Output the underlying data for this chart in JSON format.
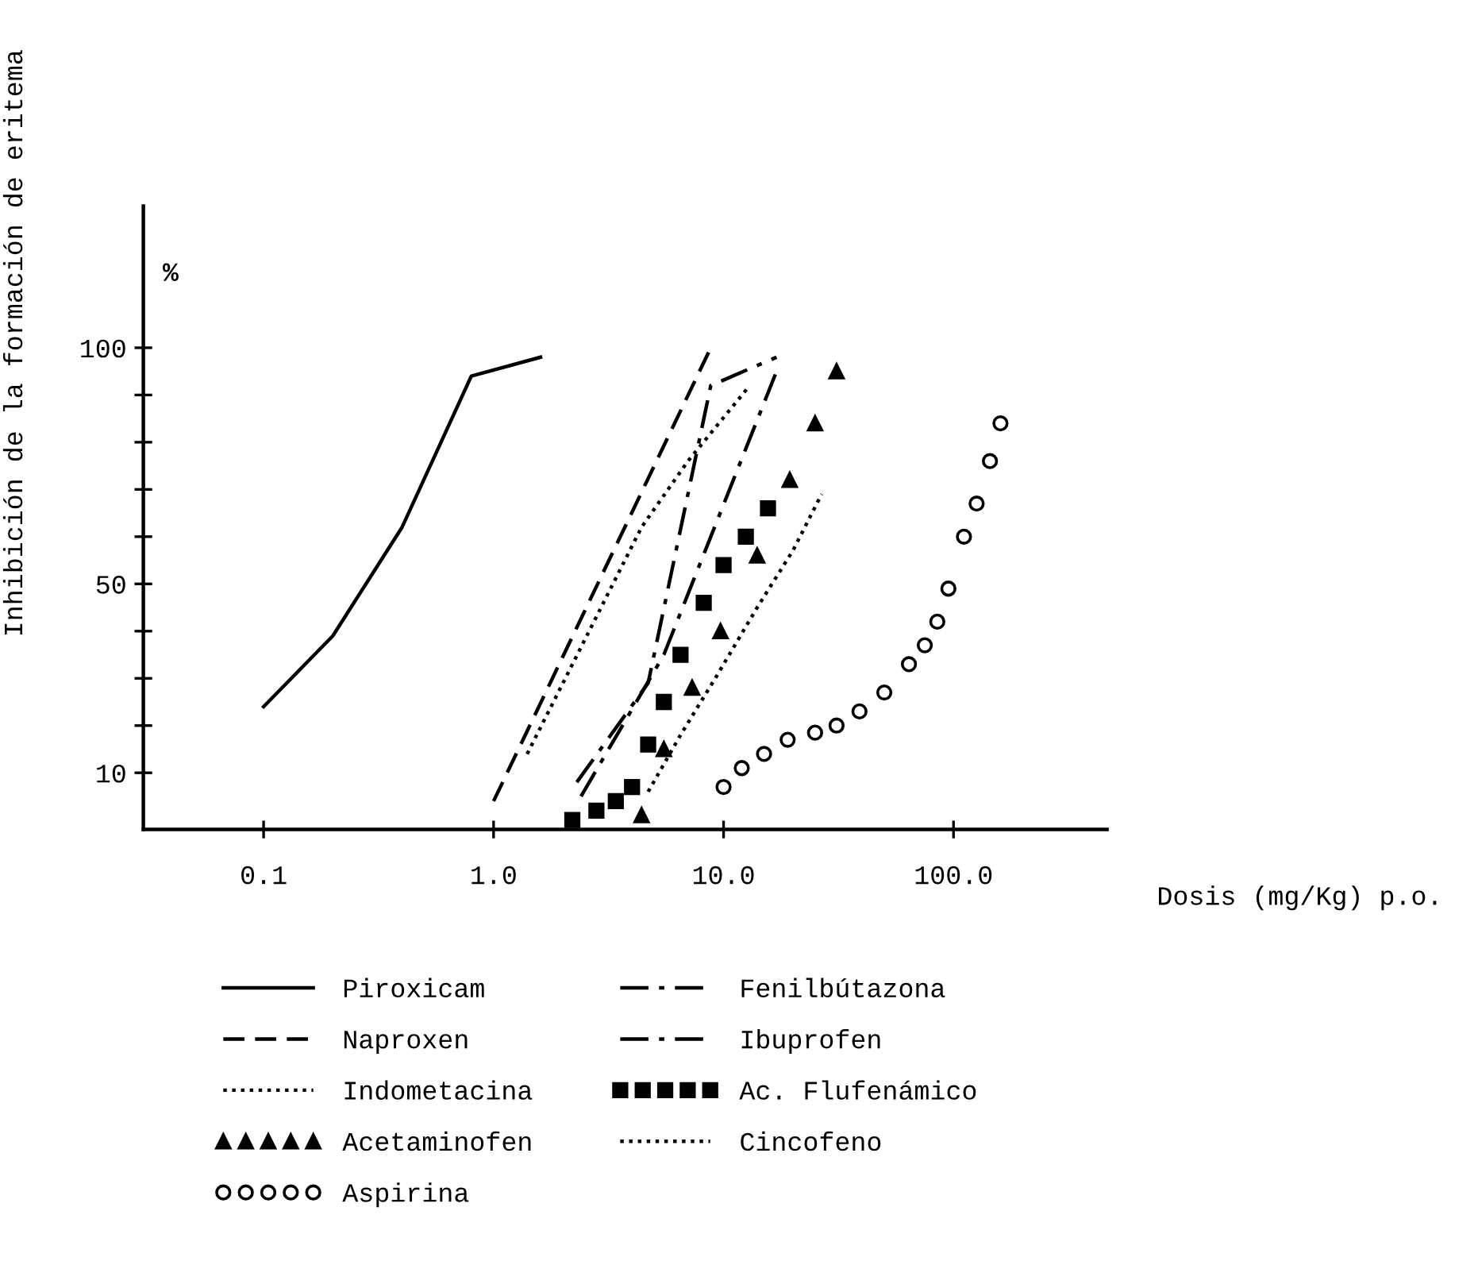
{
  "chart_data": {
    "type": "line",
    "xlabel": "Dosis (mg/Kg) p.o.",
    "ylabel": "Inhibición de la formación de eritema",
    "annotations": [
      "%"
    ],
    "log": "x",
    "xlim": [
      0.03,
      465
    ],
    "xticks": [
      0.1,
      {
        "value": 1,
        "label": "1.0"
      },
      {
        "value": 10,
        "label": "10.0"
      },
      {
        "value": 100,
        "label": "100.0"
      }
    ],
    "ylim": [
      -2,
      130
    ],
    "yticks": [
      10,
      {
        "value": 20,
        "label": null
      },
      {
        "value": 30,
        "label": null
      },
      {
        "value": 40,
        "label": null
      },
      50,
      {
        "value": 60,
        "label": null
      },
      {
        "value": 70,
        "label": null
      },
      {
        "value": 80,
        "label": null
      },
      {
        "value": 90,
        "label": null
      },
      100
    ],
    "grid": false,
    "legend": "bottom",
    "series": [
      {
        "name": "Piroxicam",
        "color": "#000000",
        "line_style": "solid",
        "marker": "none",
        "x": [
          0.1,
          0.2,
          0.4,
          0.8,
          1.6
        ],
        "values": [
          24,
          39,
          62,
          94,
          98
        ]
      },
      {
        "name": "Naproxen",
        "color": "#000000",
        "line_style": "dashed",
        "marker": "none",
        "x": [
          1.0,
          8.8
        ],
        "values": [
          4,
          100
        ]
      },
      {
        "name": "Indometacina",
        "color": "#000000",
        "line_style": "dotted",
        "marker": "none",
        "x": [
          1.4,
          4.4,
          7.0,
          13
        ],
        "values": [
          14,
          62,
          76,
          92
        ]
      },
      {
        "name": "Acetaminofen",
        "type": "scatter",
        "color": "#000000",
        "marker": "triangle",
        "x": [
          4.4,
          5.5,
          7.3,
          9.7,
          14,
          19.4,
          25,
          31
        ],
        "values": [
          1,
          15,
          28,
          40,
          56,
          72,
          84,
          95
        ]
      },
      {
        "name": "Aspirina",
        "type": "scatter",
        "color": "#000000",
        "marker": "circle",
        "x": [
          10,
          12,
          15,
          19,
          25,
          31,
          39,
          50,
          64,
          75,
          85,
          95,
          111,
          126,
          144,
          160
        ],
        "values": [
          7,
          11,
          14,
          17,
          18.5,
          20,
          23,
          27,
          33,
          37,
          42,
          49,
          60,
          67,
          76,
          84
        ]
      },
      {
        "name": "Fenilbútazona",
        "color": "#000000",
        "line_style": "dashdot",
        "marker": "none",
        "x": [
          2.3,
          4.7,
          8.8,
          17
        ],
        "values": [
          8,
          29,
          92,
          98
        ]
      },
      {
        "name": "Ibuprofen",
        "color": "#000000",
        "line_style": "dashdot",
        "marker": "none",
        "x": [
          2.4,
          5.5,
          8.8,
          17
        ],
        "values": [
          5,
          35,
          60,
          95
        ]
      },
      {
        "name": "Ac. Flufenámico",
        "type": "scatter",
        "color": "#000000",
        "marker": "square",
        "x": [
          2.2,
          2.8,
          3.4,
          4.0,
          4.7,
          5.5,
          6.5,
          8.2,
          10,
          12.5,
          15.6
        ],
        "values": [
          0,
          2,
          4,
          7,
          16,
          25,
          35,
          46,
          54,
          60,
          66
        ]
      },
      {
        "name": "Cincofeno",
        "color": "#000000",
        "line_style": "dotted",
        "marker": "none",
        "x": [
          4.7,
          6.5,
          9.2,
          14,
          20,
          26.7
        ],
        "values": [
          6,
          18,
          30,
          45,
          57,
          69
        ]
      }
    ]
  }
}
